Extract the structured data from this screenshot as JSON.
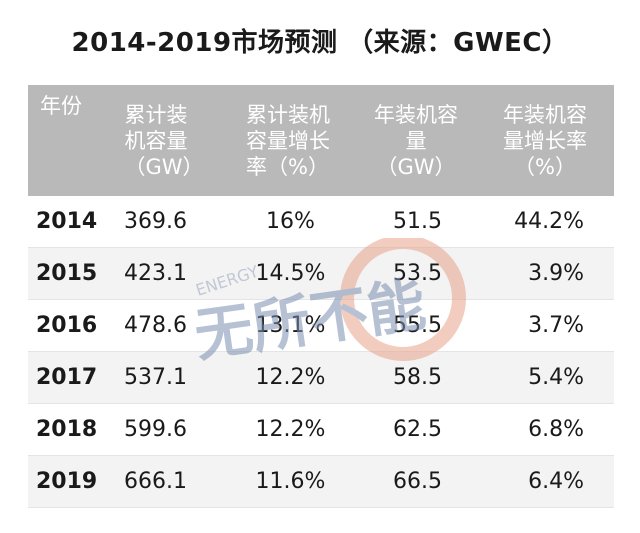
{
  "title": "2014-2019市场预测 （来源：GWEC）",
  "table": {
    "headers": [
      [
        "年份"
      ],
      [
        "累计装",
        "机容量",
        "（GW）"
      ],
      [
        "累计装机",
        "容量增长",
        "率（%）"
      ],
      [
        "年装机容",
        "量",
        "（GW）"
      ],
      [
        "年装机容",
        "量增长率",
        "（%）"
      ]
    ],
    "rows": [
      {
        "year": "2014",
        "cumulative_gw": "369.6",
        "cumulative_growth": "16%",
        "annual_gw": "51.5",
        "annual_growth": "44.2%"
      },
      {
        "year": "2015",
        "cumulative_gw": "423.1",
        "cumulative_growth": "14.5%",
        "annual_gw": "53.5",
        "annual_growth": "3.9%"
      },
      {
        "year": "2016",
        "cumulative_gw": "478.6",
        "cumulative_growth": "13.1%",
        "annual_gw": "55.5",
        "annual_growth": "3.7%"
      },
      {
        "year": "2017",
        "cumulative_gw": "537.1",
        "cumulative_growth": "12.2%",
        "annual_gw": "58.5",
        "annual_growth": "5.4%"
      },
      {
        "year": "2018",
        "cumulative_gw": "599.6",
        "cumulative_growth": "12.2%",
        "annual_gw": "62.5",
        "annual_growth": "6.8%"
      },
      {
        "year": "2019",
        "cumulative_gw": "666.1",
        "cumulative_growth": "11.6%",
        "annual_gw": "66.5",
        "annual_growth": "6.4%"
      }
    ]
  },
  "watermark": {
    "text": "无所不能",
    "sub": "ENERGY",
    "color": "#e8a38b",
    "blue": "#7c8fb0"
  },
  "colors": {
    "header_bg": "#b9b9b9",
    "stripe": "#f3f3f3"
  }
}
